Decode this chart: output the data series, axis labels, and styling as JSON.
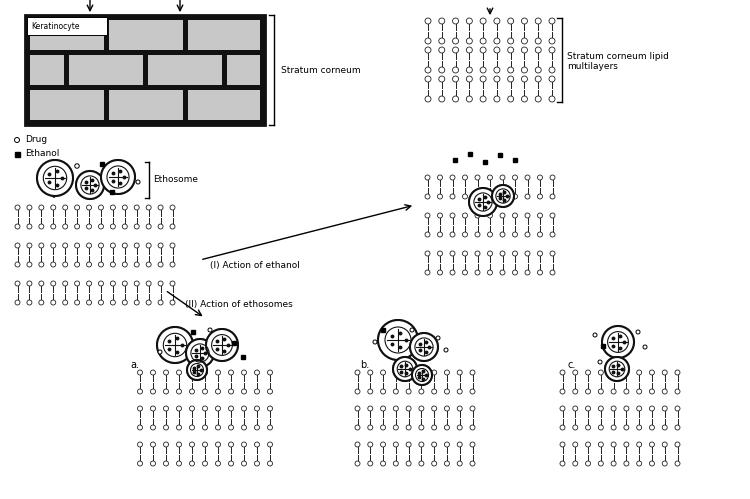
{
  "bg_color": "#ffffff",
  "brick_color": "#c8c8c8",
  "mortar_color": "#111111",
  "lipid_color": "#222222",
  "legend_drug": "Drug",
  "legend_ethanol": "Ethanol",
  "label_keratinocyte": "Keratinocyte",
  "label_stratum_corneum": "Stratum corneum",
  "label_sc_lipid": "Stratum corneum lipid\nmultilayers",
  "label_ethosome": "Ethosome",
  "label_action_ethanol": "(I) Action of ethanol",
  "label_action_ethosomes": "(II) Action of ethosomes",
  "label_a": "a.",
  "label_b": "b.",
  "label_c": "c."
}
